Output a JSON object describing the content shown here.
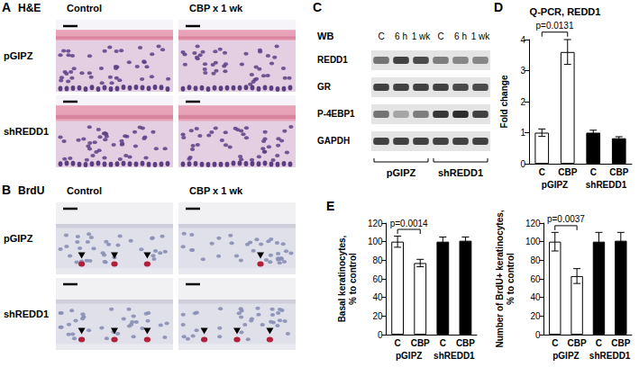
{
  "panels": [
    {
      "letter": "A",
      "title": "H&E",
      "columns": [
        "Control",
        "CBP x 1 wk"
      ],
      "rows": [
        "pGIPZ",
        "shREDD1"
      ]
    },
    {
      "letter": "B",
      "title": "BrdU",
      "columns": [
        "Control",
        "CBP x 1 wk"
      ],
      "rows": [
        "pGIPZ",
        "shREDD1"
      ],
      "marked_cells": [
        [
          3,
          1
        ],
        [
          3,
          3
        ]
      ]
    },
    {
      "letter": "C",
      "title": "WB",
      "lanes": [
        "C",
        "6 h",
        "1 wk",
        "C",
        "6 h",
        "1 wk"
      ],
      "groups": [
        "pGIPZ",
        "shREDD1"
      ],
      "bands": [
        {
          "name": "REDD1",
          "intensity": [
            0.55,
            0.8,
            0.75,
            0.5,
            0.45,
            0.45
          ]
        },
        {
          "name": "GR",
          "intensity": [
            0.8,
            0.8,
            0.8,
            0.8,
            0.75,
            0.75
          ]
        },
        {
          "name": "P-4EBP1",
          "intensity": [
            0.55,
            0.3,
            0.5,
            0.85,
            0.9,
            0.8
          ]
        },
        {
          "name": "GAPDH",
          "intensity": [
            0.8,
            0.8,
            0.8,
            0.8,
            0.8,
            0.8
          ]
        }
      ]
    },
    {
      "letter": "D"
    },
    {
      "letter": "E"
    }
  ],
  "chart_data": [
    {
      "type": "bar",
      "title": "Q-PCR, REDD1",
      "y_label": "Fold change",
      "categories": [
        "C",
        "CBP",
        "C",
        "CBP"
      ],
      "groups": [
        "pGIPZ",
        "shREDD1"
      ],
      "values": [
        1.0,
        3.6,
        1.0,
        0.82
      ],
      "errors": [
        0.12,
        0.4,
        0.08,
        0.05
      ],
      "colors": [
        "#ffffff",
        "#ffffff",
        "#000000",
        "#000000"
      ],
      "ylim": [
        0,
        4
      ],
      "yticks": [
        0,
        1,
        2,
        3,
        4
      ],
      "grid": false,
      "annotations": [
        {
          "text": "p=0.0131",
          "between": [
            0,
            1
          ]
        }
      ]
    },
    {
      "type": "bar",
      "y_label": "Basal keratinocytes, % to control",
      "categories": [
        "C",
        "CBP",
        "C",
        "CBP"
      ],
      "groups": [
        "pGIPZ",
        "shREDD1"
      ],
      "values": [
        100,
        77,
        100,
        101
      ],
      "errors": [
        6,
        4,
        5,
        4
      ],
      "colors": [
        "#ffffff",
        "#ffffff",
        "#000000",
        "#000000"
      ],
      "ylim": [
        0,
        120
      ],
      "yticks": [
        0,
        20,
        40,
        60,
        80,
        100,
        120
      ],
      "grid": false,
      "annotations": [
        {
          "text": "p=0.0014",
          "between": [
            0,
            1
          ]
        }
      ]
    },
    {
      "type": "bar",
      "y_label": "Number of BrdU+ keratinocytes, % to control",
      "categories": [
        "C",
        "CBP",
        "C",
        "CBP"
      ],
      "groups": [
        "pGIPZ",
        "shREDD1"
      ],
      "values": [
        100,
        63,
        100,
        101
      ],
      "errors": [
        10,
        8,
        10,
        9
      ],
      "colors": [
        "#ffffff",
        "#ffffff",
        "#000000",
        "#000000"
      ],
      "ylim": [
        0,
        120
      ],
      "yticks": [
        0,
        20,
        40,
        60,
        80,
        100,
        120
      ],
      "grid": false,
      "annotations": [
        {
          "text": "p=0.0037",
          "between": [
            0,
            1
          ]
        }
      ]
    }
  ]
}
